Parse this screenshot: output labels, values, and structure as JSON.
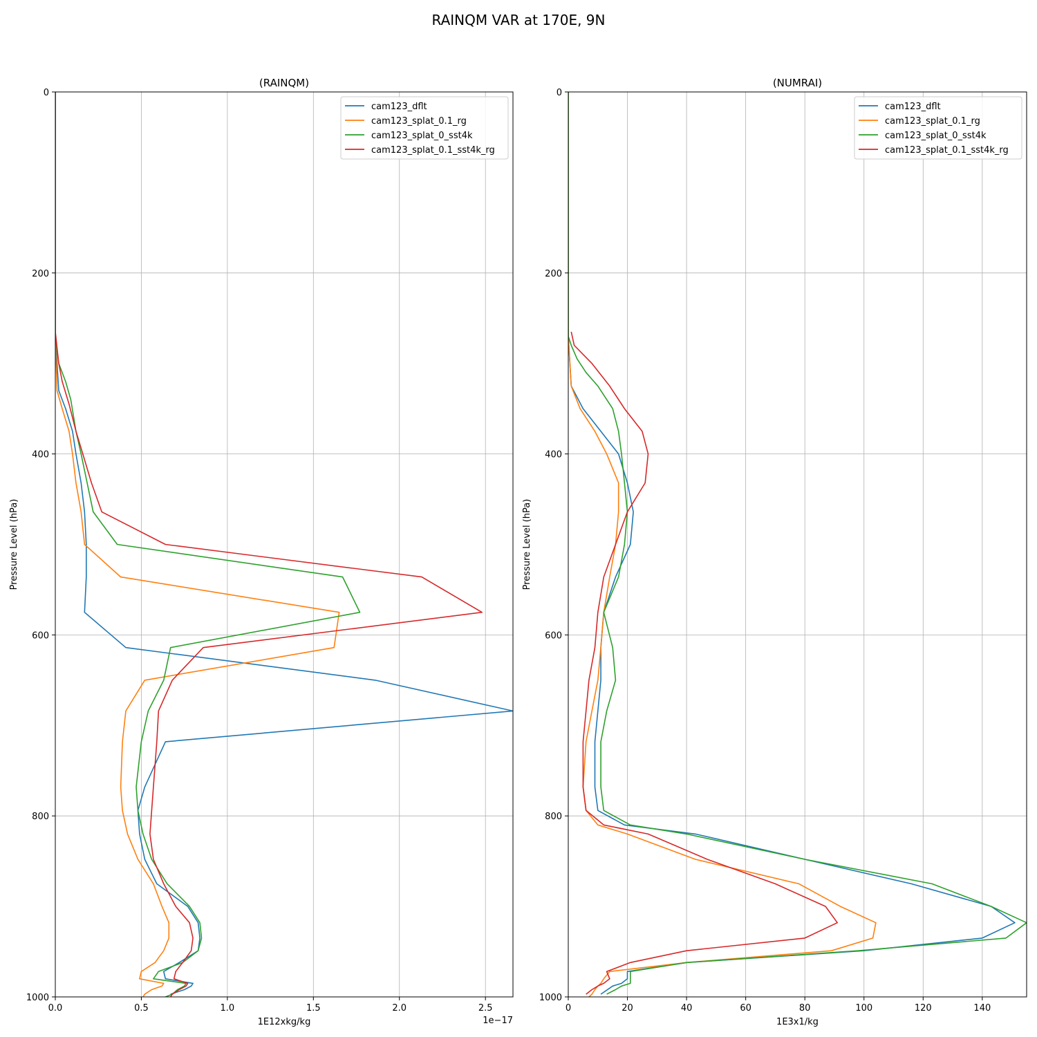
{
  "suptitle": "RAINQM VAR at 170E, 9N",
  "colors": {
    "cam123_dflt": "#1f77b4",
    "cam123_splat_0.1_rg": "#ff7f0e",
    "cam123_splat_0_sst4k": "#2ca02c",
    "cam123_splat_0.1_sst4k_rg": "#d62728"
  },
  "chart_data": [
    {
      "type": "line",
      "title": "(RAINQM)",
      "xlabel": "1E12xkg/kg",
      "ylabel": "Pressure Level (hPa)",
      "offset_text": "1e−17",
      "xlim": [
        0,
        2.66
      ],
      "ylim": [
        1000,
        0
      ],
      "xticks": [
        0,
        0.5,
        1.0,
        1.5,
        2.0,
        2.5
      ],
      "xtick_labels": [
        "0.0",
        "0.5",
        "1.0",
        "1.5",
        "2.0",
        "2.5"
      ],
      "yticks": [
        0,
        200,
        400,
        600,
        800,
        1000
      ],
      "ytick_labels": [
        "0",
        "200",
        "400",
        "600",
        "800",
        "1000"
      ],
      "grid": true,
      "legend": "top-right",
      "series": [
        {
          "name": "cam123_dflt",
          "x": [
            0,
            0,
            0.02,
            0.06,
            0.1,
            0.12,
            0.15,
            0.17,
            0.18,
            0.18,
            0.17,
            0.41,
            1.86,
            2.66,
            0.64,
            0.52,
            0.48,
            0.49,
            0.52,
            0.59,
            0.77,
            0.83,
            0.84,
            0.83,
            0.72,
            0.63,
            0.64,
            0.8,
            0.79,
            0.75,
            0.67
          ],
          "y": [
            0,
            270,
            330,
            350,
            375,
            400,
            432,
            464,
            500,
            536,
            575,
            614,
            650,
            684,
            718,
            768,
            794,
            820,
            848,
            875,
            900,
            918,
            935,
            949,
            962,
            972,
            980,
            985,
            988,
            992,
            997
          ]
        },
        {
          "name": "cam123_splat_0.1_rg",
          "x": [
            0,
            0,
            0.01,
            0.04,
            0.08,
            0.1,
            0.12,
            0.15,
            0.17,
            0.38,
            1.65,
            1.62,
            0.52,
            0.41,
            0.39,
            0.38,
            0.39,
            0.42,
            0.48,
            0.57,
            0.62,
            0.66,
            0.66,
            0.63,
            0.58,
            0.5,
            0.49,
            0.63,
            0.62,
            0.56,
            0.52,
            0.51
          ],
          "y": [
            0,
            270,
            330,
            350,
            375,
            400,
            432,
            464,
            500,
            536,
            575,
            614,
            650,
            684,
            718,
            768,
            794,
            820,
            848,
            875,
            900,
            918,
            935,
            949,
            962,
            972,
            980,
            985,
            988,
            992,
            997,
            1000
          ]
        },
        {
          "name": "cam123_splat_0_sst4k",
          "x": [
            0,
            0,
            0.02,
            0.06,
            0.09,
            0.12,
            0.15,
            0.22,
            0.36,
            1.67,
            1.77,
            0.67,
            0.63,
            0.54,
            0.5,
            0.47,
            0.48,
            0.51,
            0.56,
            0.65,
            0.78,
            0.84,
            0.85,
            0.83,
            0.74,
            0.6,
            0.57,
            0.76,
            0.75,
            0.71,
            0.68,
            0.64
          ],
          "y": [
            0,
            270,
            300,
            320,
            340,
            375,
            400,
            464,
            500,
            536,
            575,
            614,
            650,
            684,
            718,
            768,
            794,
            820,
            848,
            875,
            900,
            918,
            935,
            949,
            962,
            972,
            980,
            985,
            988,
            992,
            997,
            1000
          ]
        },
        {
          "name": "cam123_splat_0.1_sst4k_rg",
          "x": [
            0,
            0,
            0.02,
            0.04,
            0.08,
            0.12,
            0.16,
            0.21,
            0.27,
            0.64,
            2.13,
            2.48,
            0.86,
            0.68,
            0.6,
            0.59,
            0.57,
            0.56,
            0.55,
            0.57,
            0.63,
            0.7,
            0.78,
            0.8,
            0.79,
            0.74,
            0.7,
            0.69,
            0.77,
            0.76,
            0.72,
            0.68,
            0.67
          ],
          "y": [
            0,
            265,
            300,
            320,
            345,
            375,
            400,
            432,
            464,
            500,
            536,
            575,
            614,
            650,
            684,
            718,
            768,
            794,
            820,
            848,
            875,
            900,
            918,
            935,
            949,
            962,
            972,
            980,
            985,
            988,
            992,
            997,
            1000
          ]
        }
      ]
    },
    {
      "type": "line",
      "title": "(NUMRAI)",
      "xlabel": "1E3x1/kg",
      "ylabel": "Pressure Level (hPa)",
      "offset_text": "",
      "xlim": [
        0,
        155
      ],
      "ylim": [
        1000,
        0
      ],
      "xticks": [
        0,
        20,
        40,
        60,
        80,
        100,
        120,
        140
      ],
      "xtick_labels": [
        "0",
        "20",
        "40",
        "60",
        "80",
        "100",
        "120",
        "140"
      ],
      "yticks": [
        0,
        200,
        400,
        600,
        800,
        1000
      ],
      "ytick_labels": [
        "0",
        "200",
        "400",
        "600",
        "800",
        "1000"
      ],
      "grid": true,
      "legend": "top-right",
      "series": [
        {
          "name": "cam123_dflt",
          "x": [
            0,
            0,
            1,
            5,
            11,
            17,
            20,
            22,
            21,
            16,
            12,
            11,
            11,
            10,
            9,
            9,
            10,
            19,
            43,
            80,
            116,
            143,
            151,
            140,
            100,
            40,
            20,
            20,
            18,
            15,
            11
          ],
          "y": [
            0,
            270,
            325,
            350,
            375,
            400,
            432,
            464,
            500,
            536,
            575,
            614,
            650,
            684,
            718,
            768,
            794,
            810,
            820,
            848,
            875,
            900,
            918,
            935,
            949,
            962,
            972,
            980,
            985,
            988,
            997
          ]
        },
        {
          "name": "cam123_splat_0.1_rg",
          "x": [
            0,
            0,
            1,
            4,
            9,
            13,
            17,
            17,
            16,
            14,
            12,
            11,
            10,
            8,
            6,
            5,
            6,
            10,
            20,
            43,
            78,
            92,
            104,
            103,
            89,
            40,
            14,
            12,
            11,
            10,
            9,
            8,
            7
          ],
          "y": [
            0,
            270,
            325,
            350,
            375,
            400,
            432,
            464,
            500,
            536,
            575,
            614,
            650,
            684,
            718,
            768,
            794,
            810,
            820,
            848,
            875,
            900,
            918,
            935,
            949,
            962,
            972,
            980,
            985,
            988,
            992,
            997,
            1000
          ]
        },
        {
          "name": "cam123_splat_0_sst4k",
          "x": [
            0,
            0,
            1,
            3,
            6,
            10,
            15,
            17,
            18,
            19,
            20,
            19,
            17,
            12,
            15,
            16,
            13,
            11,
            11,
            12,
            21,
            40,
            80,
            123,
            143,
            155,
            148,
            98,
            40,
            21,
            21,
            21,
            18,
            16,
            13
          ],
          "y": [
            0,
            270,
            280,
            295,
            310,
            325,
            350,
            375,
            400,
            432,
            464,
            500,
            536,
            575,
            614,
            650,
            684,
            718,
            768,
            794,
            810,
            820,
            848,
            875,
            900,
            918,
            935,
            949,
            962,
            972,
            980,
            985,
            988,
            992,
            997
          ]
        },
        {
          "name": "cam123_splat_0.1_sst4k_rg",
          "x": [
            1,
            2,
            8,
            14,
            19,
            25,
            27,
            26,
            20,
            12,
            10,
            9,
            7,
            6,
            5,
            5,
            6,
            12,
            27,
            47,
            70,
            87,
            91,
            80,
            40,
            21,
            13,
            14,
            12,
            10,
            8,
            6
          ],
          "y": [
            265,
            280,
            300,
            325,
            350,
            375,
            400,
            432,
            464,
            536,
            575,
            614,
            650,
            684,
            718,
            768,
            794,
            810,
            820,
            848,
            875,
            900,
            918,
            935,
            949,
            962,
            972,
            980,
            985,
            988,
            992,
            997
          ]
        }
      ]
    }
  ]
}
